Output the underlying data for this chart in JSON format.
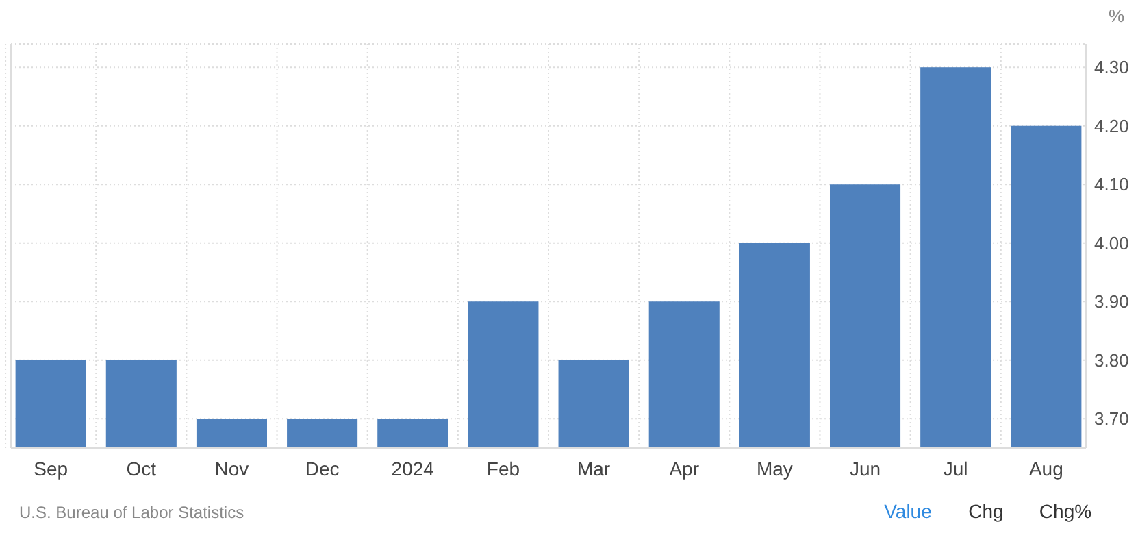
{
  "chart_data": {
    "type": "bar",
    "ylabel": "%",
    "categories": [
      "Sep",
      "Oct",
      "Nov",
      "Dec",
      "2024",
      "Feb",
      "Mar",
      "Apr",
      "May",
      "Jun",
      "Jul",
      "Aug"
    ],
    "values": [
      3.8,
      3.8,
      3.7,
      3.7,
      3.7,
      3.9,
      3.8,
      3.9,
      4.0,
      4.1,
      4.3,
      4.2
    ],
    "color": "#4f81bd",
    "ylim": [
      3.65,
      4.34
    ],
    "yticks": [
      {
        "value": 3.7,
        "label": "3.70"
      },
      {
        "value": 3.8,
        "label": "3.80"
      },
      {
        "value": 3.9,
        "label": "3.90"
      },
      {
        "value": 4.0,
        "label": "4.00"
      },
      {
        "value": 4.1,
        "label": "4.10"
      },
      {
        "value": 4.2,
        "label": "4.20"
      },
      {
        "value": 4.3,
        "label": "4.30"
      }
    ],
    "grid": true,
    "annotations": [
      "U.S. Bureau of Labor Statistics",
      "Value",
      "Chg",
      "Chg%"
    ]
  }
}
